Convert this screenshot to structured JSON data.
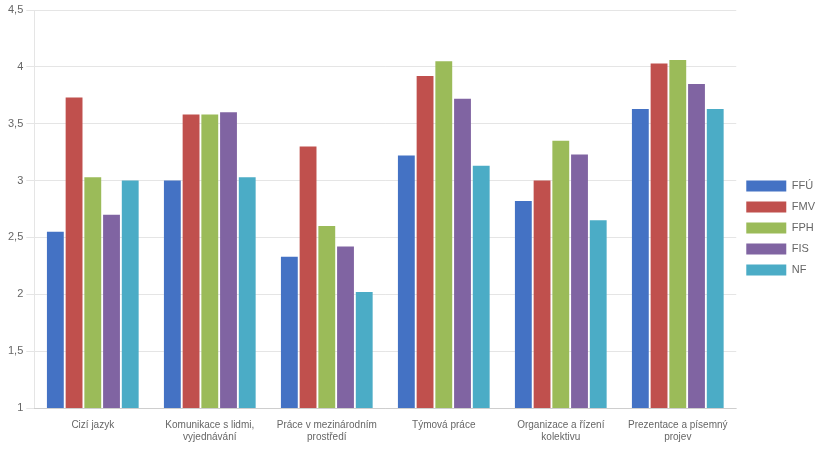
{
  "chart_data": {
    "type": "bar",
    "categories": [
      "Cizí jazyk",
      "Komunikace s lidmi,\nvyjednávání",
      "Práce v mezinárodním\nprostředí",
      "Týmová práce",
      "Organizace a řízení\nkolektivu",
      "Prezentace a písemný\nprojev"
    ],
    "series": [
      {
        "name": "FFÚ",
        "color": "#4472C4",
        "values": [
          2.55,
          3.0,
          2.33,
          3.22,
          2.82,
          3.63
        ]
      },
      {
        "name": "FMV",
        "color": "#C0504D",
        "values": [
          3.73,
          3.58,
          3.3,
          3.92,
          3.0,
          4.03
        ]
      },
      {
        "name": "FPH",
        "color": "#9BBB59",
        "values": [
          3.03,
          3.58,
          2.6,
          4.05,
          3.35,
          4.06
        ]
      },
      {
        "name": "FIS",
        "color": "#8064A2",
        "values": [
          2.7,
          3.6,
          2.42,
          3.72,
          3.23,
          3.85
        ]
      },
      {
        "name": "NF",
        "color": "#4BACC6",
        "values": [
          3.0,
          3.03,
          2.02,
          3.13,
          2.65,
          3.63
        ]
      }
    ],
    "ylim": [
      1,
      4.5
    ],
    "yticks": [
      1,
      {
        "value": 1.5,
        "label": "1,5"
      },
      2,
      {
        "value": 2.5,
        "label": "2,5"
      },
      3,
      {
        "value": 3.5,
        "label": "3,5"
      },
      4,
      {
        "value": 4.5,
        "label": "4,5"
      }
    ],
    "grid": true,
    "legend": "right"
  }
}
